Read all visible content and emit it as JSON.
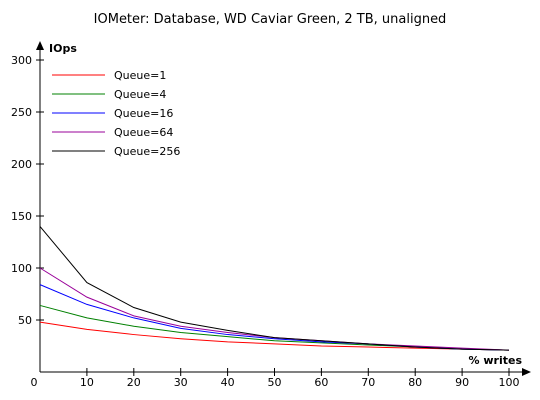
{
  "chart_data": {
    "type": "line",
    "title": "IOMeter: Database, WD Caviar Green, 2 TB, unaligned",
    "xlabel": "% writes",
    "ylabel": "IOps",
    "x": [
      0,
      10,
      20,
      30,
      40,
      50,
      60,
      70,
      80,
      90,
      100
    ],
    "xlim": [
      0,
      100
    ],
    "ylim": [
      0,
      300
    ],
    "x_ticks": [
      0,
      10,
      20,
      30,
      40,
      50,
      60,
      70,
      80,
      90,
      100
    ],
    "y_ticks": [
      0,
      50,
      100,
      150,
      200,
      250,
      300
    ],
    "grid": false,
    "legend_position": "top-left",
    "series": [
      {
        "name": "Queue=1",
        "color": "#ff0000",
        "values": [
          48,
          41,
          36,
          32,
          29,
          27,
          25,
          24,
          23,
          22,
          21
        ]
      },
      {
        "name": "Queue=4",
        "color": "#008000",
        "values": [
          64,
          52,
          44,
          38,
          34,
          30,
          28,
          26,
          24,
          22,
          21
        ]
      },
      {
        "name": "Queue=16",
        "color": "#0000ff",
        "values": [
          84,
          65,
          52,
          42,
          36,
          32,
          29,
          27,
          24,
          22,
          21
        ]
      },
      {
        "name": "Queue=64",
        "color": "#990099",
        "values": [
          100,
          72,
          54,
          44,
          38,
          33,
          30,
          27,
          25,
          23,
          21
        ]
      },
      {
        "name": "Queue=256",
        "color": "#000000",
        "values": [
          140,
          86,
          62,
          48,
          40,
          33,
          30,
          27,
          24,
          22,
          21
        ]
      }
    ]
  }
}
